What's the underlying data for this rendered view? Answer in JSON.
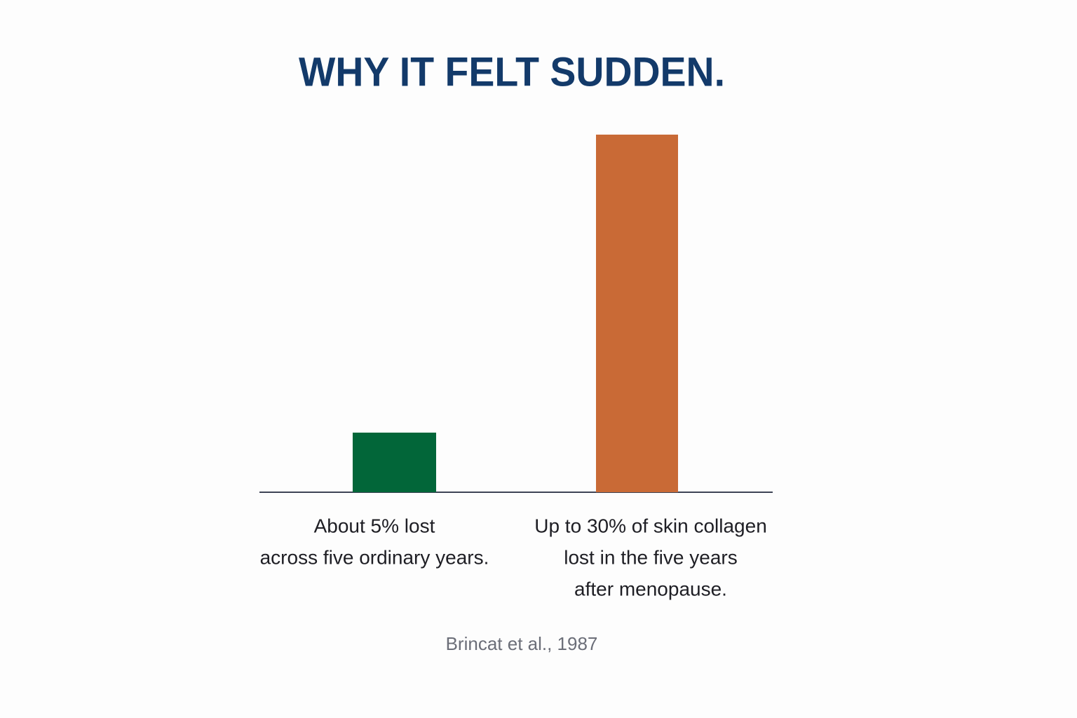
{
  "chart_data": {
    "type": "bar",
    "title": "WHY IT FELT SUDDEN.",
    "categories": [
      [
        "About 5% lost",
        "across five ordinary years."
      ],
      [
        "Up to 30% of skin collagen",
        "lost in the five years",
        "after menopause."
      ]
    ],
    "values": [
      5,
      30
    ],
    "colors": [
      "#026639",
      "#c96a36"
    ],
    "source": "Brincat et al., 1987"
  }
}
